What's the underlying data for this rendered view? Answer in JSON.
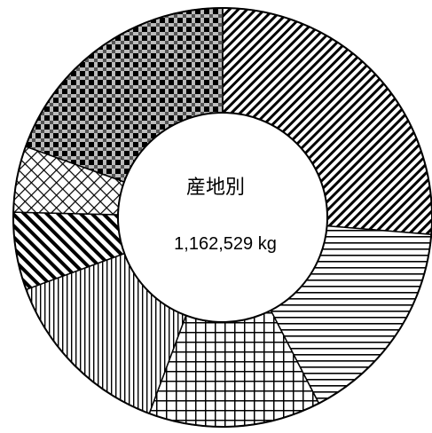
{
  "chart_data": {
    "type": "pie",
    "style": "donut",
    "center_title": "産地別",
    "center_value": "1,162,529 kg",
    "slices": [
      {
        "value": 0.263,
        "pattern": "diagonal-back"
      },
      {
        "value": 0.161,
        "pattern": "horizontal"
      },
      {
        "value": 0.133,
        "pattern": "grid"
      },
      {
        "value": 0.137,
        "pattern": "vertical"
      },
      {
        "value": 0.06,
        "pattern": "diagonal-forward"
      },
      {
        "value": 0.051,
        "pattern": "crosshatch"
      },
      {
        "value": 0.195,
        "pattern": "checker"
      }
    ],
    "colors": {
      "stroke": "#000000",
      "fill": "#ffffff"
    }
  }
}
